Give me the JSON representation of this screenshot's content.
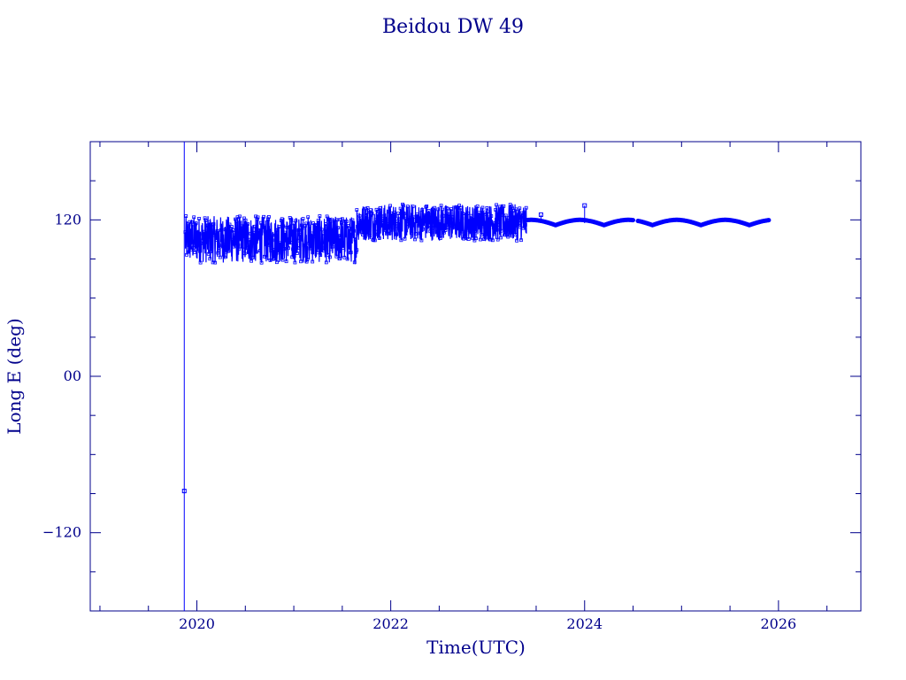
{
  "chart_data": {
    "type": "line",
    "title": "Beidou DW 49",
    "xlabel": "Time(UTC)",
    "ylabel": "Long E (deg)",
    "xlim": [
      2018.9,
      2026.85
    ],
    "ylim": [
      -180,
      180
    ],
    "x_ticks": [
      2020,
      2022,
      2024,
      2026
    ],
    "x_tick_labels": [
      "2020",
      "2022",
      "2024",
      "2026"
    ],
    "y_ticks": [
      -120,
      0,
      120
    ],
    "y_tick_labels": [
      "−120",
      "00",
      "120"
    ],
    "grid": false,
    "series_color": "#0000ff",
    "axis_color": "#00008b",
    "series": [
      {
        "spike": {
          "x": 2019.87,
          "y_values": [
            180,
            -88,
            -180
          ]
        },
        "noisy_segments": [
          {
            "x_start": 2019.88,
            "x_end": 2021.65,
            "center": 105,
            "amplitude": 18
          },
          {
            "x_start": 2021.65,
            "x_end": 2023.4,
            "center": 118,
            "amplitude": 14
          }
        ],
        "isolated_points": [
          {
            "x": 2023.55,
            "y": 124
          },
          {
            "x": 2024.0,
            "y": 131
          }
        ],
        "smooth_segments": [
          {
            "x_start": 2023.4,
            "x_end": 2024.5
          },
          {
            "x_start": 2024.55,
            "x_end": 2025.9
          }
        ],
        "smooth_center": 117.5,
        "smooth_amplitude": 2.5,
        "smooth_period_years": 0.5
      }
    ]
  }
}
